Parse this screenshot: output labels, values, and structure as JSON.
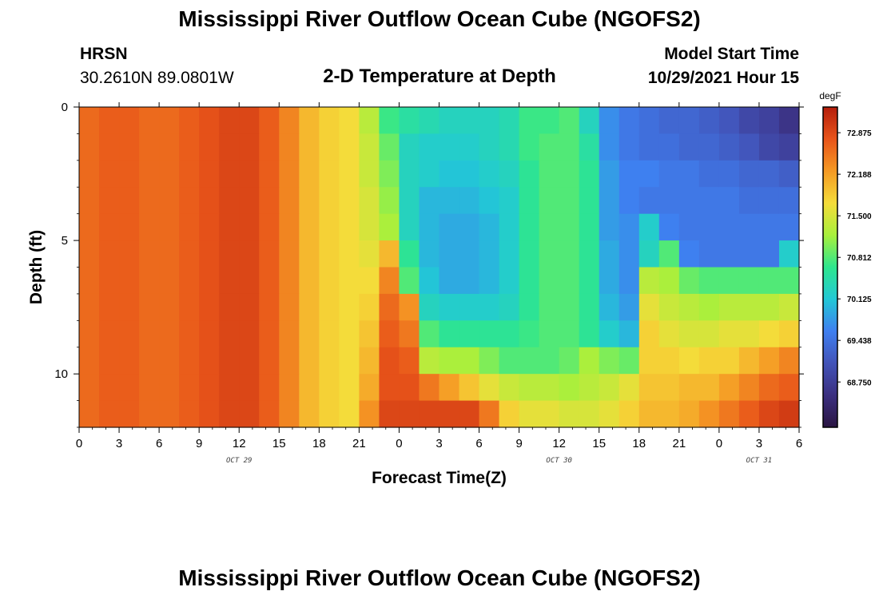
{
  "header": {
    "title": "Mississippi River Outflow Ocean Cube (NGOFS2)",
    "station": "HRSN",
    "coords": "30.2610N  89.0801W",
    "subtitle": "2-D Temperature at Depth",
    "model_start_label": "Model Start Time",
    "model_start_value": "10/29/2021 Hour 15"
  },
  "footer": {
    "title": "Mississippi River Outflow Ocean Cube (NGOFS2)"
  },
  "chart_data": {
    "type": "heatmap",
    "xlabel": "Forecast Time(Z)",
    "ylabel": "Depth (ft)",
    "x_tick_labels": [
      "0",
      "3",
      "6",
      "9",
      "12",
      "15",
      "18",
      "21",
      "0",
      "3",
      "6",
      "9",
      "12",
      "15",
      "18",
      "21",
      "0",
      "3",
      "6"
    ],
    "day_labels": [
      {
        "label": "OCT 29",
        "hour": 12
      },
      {
        "label": "OCT 30",
        "hour": 36
      },
      {
        "label": "OCT 31",
        "hour": 51
      }
    ],
    "x_range_hours": [
      0,
      54
    ],
    "y_ticks": [
      0,
      5,
      10
    ],
    "y_range_ft": [
      0,
      12
    ],
    "x_centers_hours": [
      0.75,
      2.25,
      3.75,
      5.25,
      6.75,
      8.25,
      9.75,
      11.25,
      12.75,
      14.25,
      15.75,
      17.25,
      18.75,
      20.25,
      21.75,
      23.25,
      24.75,
      26.25,
      27.75,
      29.25,
      30.75,
      32.25,
      33.75,
      35.25,
      36.75,
      38.25,
      39.75,
      41.25,
      42.75,
      44.25,
      45.75,
      47.25,
      48.75,
      50.25,
      51.75,
      53.25
    ],
    "depth_centers_ft": [
      0.5,
      1.5,
      2.5,
      3.5,
      4.5,
      5.5,
      6.5,
      7.5,
      8.5,
      9.5,
      10.5,
      11.5
    ],
    "values": [
      [
        72.6,
        72.7,
        72.7,
        72.6,
        72.6,
        72.7,
        72.8,
        72.9,
        72.9,
        72.7,
        72.4,
        72.0,
        71.8,
        71.7,
        71.3,
        70.7,
        70.5,
        70.4,
        70.3,
        70.3,
        70.3,
        70.4,
        70.7,
        70.7,
        70.8,
        70.3,
        69.7,
        69.5,
        69.4,
        69.3,
        69.3,
        69.2,
        69.1,
        68.9,
        68.8,
        68.6
      ],
      [
        72.6,
        72.7,
        72.7,
        72.6,
        72.6,
        72.7,
        72.8,
        72.9,
        72.9,
        72.7,
        72.4,
        72.0,
        71.8,
        71.7,
        71.4,
        70.9,
        70.3,
        70.2,
        70.2,
        70.2,
        70.3,
        70.4,
        70.7,
        70.8,
        70.8,
        70.5,
        69.7,
        69.5,
        69.4,
        69.4,
        69.3,
        69.3,
        69.2,
        69.1,
        68.9,
        68.8
      ],
      [
        72.6,
        72.7,
        72.7,
        72.6,
        72.6,
        72.7,
        72.8,
        72.9,
        72.9,
        72.7,
        72.4,
        72.0,
        71.8,
        71.7,
        71.4,
        71.0,
        70.3,
        70.2,
        70.1,
        70.1,
        70.2,
        70.3,
        70.6,
        70.8,
        70.8,
        70.6,
        69.8,
        69.6,
        69.6,
        69.5,
        69.5,
        69.4,
        69.4,
        69.3,
        69.3,
        69.2
      ],
      [
        72.6,
        72.7,
        72.7,
        72.6,
        72.6,
        72.7,
        72.8,
        72.9,
        72.9,
        72.7,
        72.4,
        72.0,
        71.8,
        71.7,
        71.5,
        71.1,
        70.3,
        70.0,
        70.0,
        70.0,
        70.1,
        70.2,
        70.6,
        70.8,
        70.8,
        70.6,
        69.8,
        69.6,
        69.5,
        69.5,
        69.5,
        69.5,
        69.5,
        69.4,
        69.4,
        69.4
      ],
      [
        72.6,
        72.7,
        72.7,
        72.6,
        72.6,
        72.7,
        72.8,
        72.9,
        72.9,
        72.7,
        72.4,
        72.0,
        71.8,
        71.7,
        71.5,
        71.2,
        70.3,
        70.0,
        69.9,
        69.9,
        70.0,
        70.2,
        70.6,
        70.8,
        70.8,
        70.6,
        69.8,
        69.7,
        70.2,
        69.6,
        69.5,
        69.5,
        69.5,
        69.5,
        69.5,
        69.5
      ],
      [
        72.6,
        72.7,
        72.7,
        72.6,
        72.6,
        72.7,
        72.8,
        72.9,
        72.9,
        72.7,
        72.4,
        72.0,
        71.8,
        71.7,
        71.6,
        72.0,
        70.6,
        70.0,
        69.9,
        69.9,
        70.0,
        70.2,
        70.6,
        70.8,
        70.8,
        70.6,
        69.9,
        69.7,
        70.3,
        70.8,
        69.6,
        69.5,
        69.5,
        69.5,
        69.5,
        70.2
      ],
      [
        72.6,
        72.7,
        72.7,
        72.6,
        72.6,
        72.7,
        72.8,
        72.9,
        72.9,
        72.7,
        72.4,
        72.0,
        71.8,
        71.7,
        71.7,
        72.4,
        70.8,
        70.1,
        69.9,
        69.9,
        70.0,
        70.2,
        70.6,
        70.8,
        70.8,
        70.6,
        69.9,
        69.7,
        71.3,
        71.2,
        70.9,
        70.8,
        70.8,
        70.8,
        70.8,
        70.8
      ],
      [
        72.6,
        72.7,
        72.7,
        72.6,
        72.6,
        72.7,
        72.8,
        72.9,
        72.9,
        72.7,
        72.4,
        72.0,
        71.8,
        71.7,
        71.8,
        72.6,
        72.3,
        70.3,
        70.2,
        70.2,
        70.2,
        70.3,
        70.6,
        70.8,
        70.8,
        70.6,
        70.0,
        69.8,
        71.6,
        71.4,
        71.3,
        71.2,
        71.3,
        71.3,
        71.3,
        71.4
      ],
      [
        72.6,
        72.7,
        72.7,
        72.6,
        72.6,
        72.7,
        72.8,
        72.9,
        72.9,
        72.7,
        72.4,
        72.0,
        71.8,
        71.7,
        71.9,
        72.7,
        72.5,
        70.8,
        70.6,
        70.6,
        70.6,
        70.6,
        70.7,
        70.8,
        70.8,
        70.6,
        70.2,
        70.0,
        71.8,
        71.6,
        71.5,
        71.5,
        71.6,
        71.6,
        71.7,
        71.8
      ],
      [
        72.6,
        72.7,
        72.7,
        72.6,
        72.6,
        72.7,
        72.8,
        72.9,
        72.9,
        72.7,
        72.4,
        72.0,
        71.8,
        71.7,
        72.0,
        72.8,
        72.7,
        71.3,
        71.2,
        71.2,
        71.0,
        70.8,
        70.8,
        70.8,
        70.9,
        71.2,
        71.0,
        70.9,
        71.8,
        71.8,
        71.7,
        71.8,
        71.8,
        72.0,
        72.2,
        72.4
      ],
      [
        72.6,
        72.7,
        72.7,
        72.6,
        72.6,
        72.7,
        72.8,
        72.9,
        72.9,
        72.7,
        72.4,
        72.0,
        71.8,
        71.7,
        72.1,
        72.8,
        72.8,
        72.5,
        72.2,
        71.9,
        71.6,
        71.4,
        71.3,
        71.3,
        71.2,
        71.3,
        71.4,
        71.6,
        71.9,
        71.9,
        72.0,
        72.0,
        72.2,
        72.4,
        72.6,
        72.7
      ],
      [
        72.6,
        72.7,
        72.7,
        72.6,
        72.6,
        72.7,
        72.8,
        72.9,
        72.9,
        72.7,
        72.4,
        72.0,
        71.8,
        71.7,
        72.3,
        72.9,
        72.9,
        72.9,
        72.9,
        72.9,
        72.5,
        71.8,
        71.6,
        71.6,
        71.5,
        71.5,
        71.6,
        71.8,
        72.0,
        72.0,
        72.1,
        72.3,
        72.5,
        72.7,
        72.9,
        73.0
      ]
    ],
    "colorbar": {
      "unit": "degF",
      "labels": [
        "72.875",
        "72.188",
        "71.500",
        "70.812",
        "70.125",
        "69.438",
        "68.750"
      ],
      "range": [
        68.0,
        73.3
      ],
      "colors": [
        "#2a1542",
        "#3b2f80",
        "#4253b8",
        "#3f7ff0",
        "#22c8d6",
        "#2ee68e",
        "#a8f03c",
        "#f5dc3a",
        "#f59a24",
        "#e8541a",
        "#b41d0c"
      ]
    }
  }
}
